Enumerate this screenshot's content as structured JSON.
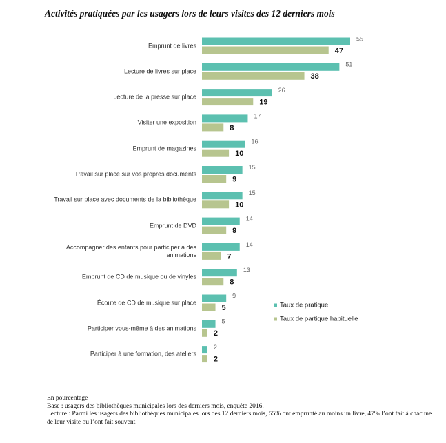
{
  "chart_data": {
    "type": "hbar",
    "title": "Activités pratiquées par les usagers lors de leurs visites des 12 derniers mois",
    "categories": [
      "Emprunt de livres",
      "Lecture de livres sur place",
      "Lecture de la presse sur place",
      "Visiter une exposition",
      "Emprunt de magazines",
      "Travail sur place sur vos propres documents",
      "Travail sur place avec documents de la bibliothèque",
      "Emprunt de DVD",
      "Accompagner des enfants pour participer à des animations",
      "Emprunt de CD de musique ou de vinyles",
      "Écoute de CD de musique sur place",
      "Participer vous-même à des animations",
      "Participer à une formation, des ateliers"
    ],
    "series": [
      {
        "name": "Taux de pratique",
        "color": "#5cc0b0",
        "values": [
          55,
          51,
          26,
          17,
          16,
          15,
          15,
          14,
          14,
          13,
          9,
          5,
          2
        ]
      },
      {
        "name": "Taux de partique habituelle",
        "color": "#b7c58f",
        "values": [
          47,
          38,
          19,
          8,
          10,
          9,
          10,
          9,
          7,
          8,
          5,
          2,
          2
        ]
      }
    ],
    "legend": "right",
    "notes": [
      "En pourcentage",
      "Base : usagers des bibliothèques municipales lors des derniers mois, enquête 2016.",
      "Lecture : Parmi les usagers des bibliothèques municipales lors des 12 derniers mois, 55% ont emprunté au moins un livre, 47% l’ont fait à chacune de leur visite ou l’ont fait souvent."
    ]
  }
}
